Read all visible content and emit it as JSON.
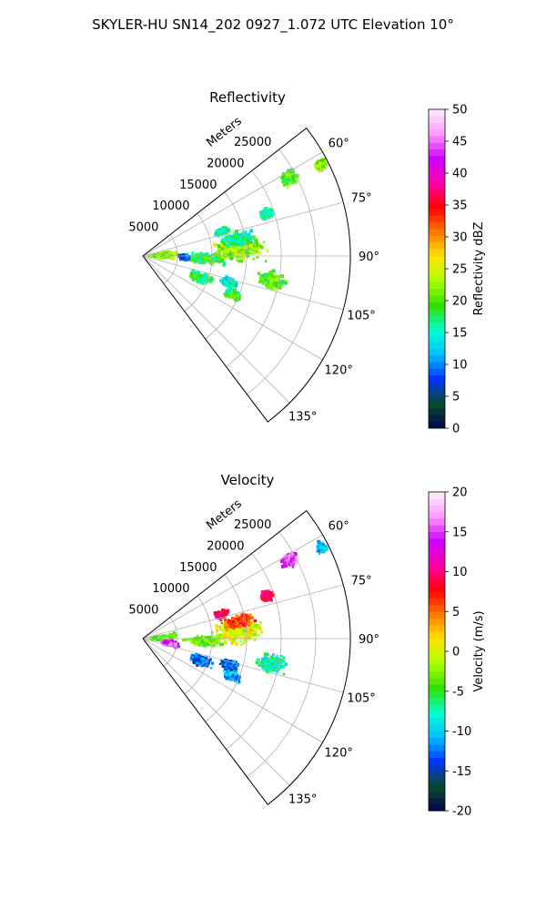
{
  "suptitle": "SKYLER-HU  SN14_202  0927_1.072 UTC Elevation 10°",
  "chart_data": [
    {
      "type": "heatmap",
      "subtype": "polar-sector radar PPI",
      "title": "Reflectivity",
      "radial_label": "Meters",
      "radial_ticks": [
        "5000",
        "10000",
        "15000",
        "20000",
        "25000"
      ],
      "radial_range": [
        0,
        30000
      ],
      "angle_ticks": [
        "60°",
        "75°",
        "90°",
        "105°",
        "120°",
        "135°"
      ],
      "angle_range_deg": [
        52,
        143
      ],
      "grid": true,
      "colorbar": {
        "label": "Reflectivity dBZ",
        "range": [
          0,
          50
        ],
        "ticks": [
          "0",
          "5",
          "10",
          "15",
          "20",
          "25",
          "30",
          "35",
          "40",
          "45",
          "50"
        ],
        "stops": [
          "#02024f",
          "#0a4a2a",
          "#0033ff",
          "#00bfff",
          "#00ffd0",
          "#33e000",
          "#aaff00",
          "#ffe600",
          "#ff7a00",
          "#ff0000",
          "#ff00aa",
          "#cc00ff",
          "#ff99ff",
          "#fff0ff"
        ]
      },
      "echoes": [
        {
          "az": 88,
          "r": 3000,
          "dr": 2500,
          "daz": 10,
          "value": 22
        },
        {
          "az": 92,
          "r": 9000,
          "dr": 3500,
          "daz": 6,
          "value": 18
        },
        {
          "az": 86,
          "r": 14000,
          "dr": 4500,
          "daz": 9,
          "value": 22
        },
        {
          "az": 80,
          "r": 14000,
          "dr": 3000,
          "daz": 5,
          "value": 16
        },
        {
          "az": 101,
          "r": 19000,
          "dr": 2500,
          "daz": 5,
          "value": 20
        },
        {
          "az": 111,
          "r": 9000,
          "dr": 2000,
          "daz": 6,
          "value": 18
        },
        {
          "az": 107,
          "r": 13000,
          "dr": 1500,
          "daz": 4,
          "value": 14
        },
        {
          "az": 113,
          "r": 14000,
          "dr": 1500,
          "daz": 3,
          "value": 19
        },
        {
          "az": 62,
          "r": 24000,
          "dr": 1500,
          "daz": 3,
          "value": 20
        },
        {
          "az": 63,
          "r": 29000,
          "dr": 1200,
          "daz": 2,
          "value": 22
        },
        {
          "az": 73,
          "r": 12000,
          "dr": 1200,
          "daz": 3,
          "value": 16
        },
        {
          "az": 71,
          "r": 19000,
          "dr": 1200,
          "daz": 3,
          "value": 16
        },
        {
          "az": 92,
          "r": 6000,
          "dr": 1000,
          "daz": 4,
          "value": 8
        }
      ]
    },
    {
      "type": "heatmap",
      "subtype": "polar-sector radar PPI",
      "title": "Velocity",
      "radial_label": "Meters",
      "radial_ticks": [
        "5000",
        "10000",
        "15000",
        "20000",
        "25000"
      ],
      "radial_range": [
        0,
        30000
      ],
      "angle_ticks": [
        "60°",
        "75°",
        "90°",
        "105°",
        "120°",
        "135°"
      ],
      "angle_range_deg": [
        52,
        143
      ],
      "grid": true,
      "colorbar": {
        "label": "Velocity (m/s)",
        "range": [
          -20,
          20
        ],
        "ticks": [
          "-20",
          "-15",
          "-10",
          "-5",
          "0",
          "5",
          "10",
          "15",
          "20"
        ],
        "stops": [
          "#02024f",
          "#0a4a2a",
          "#0033ff",
          "#00bfff",
          "#00ffd0",
          "#33e000",
          "#aaff00",
          "#ffe600",
          "#ff7a00",
          "#ff0000",
          "#ff00aa",
          "#cc00ff",
          "#ff99ff",
          "#fff0ff"
        ]
      },
      "echoes": [
        {
          "az": 88,
          "r": 3000,
          "dr": 2500,
          "daz": 10,
          "value": -3
        },
        {
          "az": 92,
          "r": 9000,
          "dr": 3500,
          "daz": 6,
          "value": -3
        },
        {
          "az": 86,
          "r": 14000,
          "dr": 4500,
          "daz": 9,
          "value": 0
        },
        {
          "az": 80,
          "r": 14000,
          "dr": 3000,
          "daz": 5,
          "value": 6
        },
        {
          "az": 101,
          "r": 19000,
          "dr": 2500,
          "daz": 5,
          "value": -7
        },
        {
          "az": 111,
          "r": 9000,
          "dr": 2000,
          "daz": 6,
          "value": -13
        },
        {
          "az": 107,
          "r": 13000,
          "dr": 1500,
          "daz": 4,
          "value": -13
        },
        {
          "az": 113,
          "r": 14000,
          "dr": 1500,
          "daz": 3,
          "value": -11
        },
        {
          "az": 62,
          "r": 24000,
          "dr": 1500,
          "daz": 3,
          "value": 15
        },
        {
          "az": 63,
          "r": 29000,
          "dr": 1200,
          "daz": 2,
          "value": -11
        },
        {
          "az": 73,
          "r": 12000,
          "dr": 1200,
          "daz": 3,
          "value": 10
        },
        {
          "az": 71,
          "r": 19000,
          "dr": 1200,
          "daz": 3,
          "value": 9
        },
        {
          "az": 100,
          "r": 4000,
          "dr": 1500,
          "daz": 6,
          "value": 15
        }
      ]
    }
  ]
}
